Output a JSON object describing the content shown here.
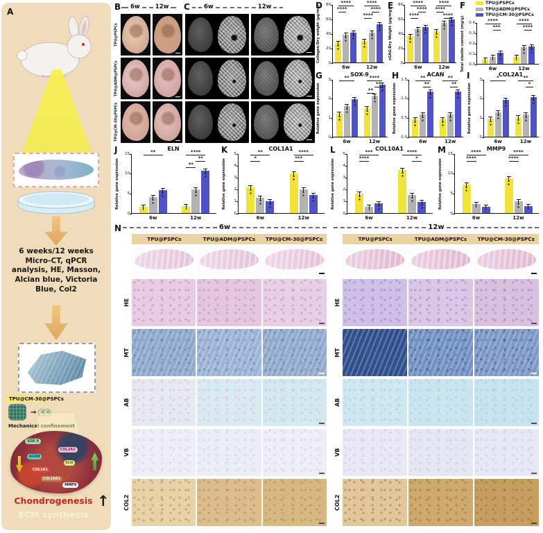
{
  "panelA": {
    "label": "A",
    "protocol_text": "6 weeks/12 weeks Micro-CT, qPCR analysis, HE, Masson, Alcian blue, Victoria Blue, Col2",
    "construct_label": "TPU@CM-30@PSPCs",
    "confinement_label": "Mechanical confinement",
    "cell_genes": [
      {
        "name": "SOX 9",
        "bg": "#a8dcb0",
        "fg": "#1c4d2a"
      },
      {
        "name": "COL2A1",
        "bg": "#f2bede",
        "fg": "#7a2456"
      },
      {
        "name": "ACAN",
        "bg": "#5fc8c0",
        "fg": "#0d4745"
      },
      {
        "name": "ELN",
        "bg": "#e4e98a",
        "fg": "#6b6b14"
      },
      {
        "name": "COL1A1",
        "bg": "#d8453c",
        "fg": "#ffffff"
      },
      {
        "name": "COL10A1",
        "bg": "#c87840",
        "fg": "#ffffff"
      },
      {
        "name": "MMP9",
        "bg": "#f2f2f2",
        "fg": "#222222"
      }
    ],
    "outcomes": [
      {
        "text": "Chondrogenesis",
        "color": "#c5281c"
      },
      {
        "text": "ECM synthesis",
        "color": "#f6efd2"
      }
    ]
  },
  "legend": {
    "items": [
      {
        "label": "TPU@PSPCs",
        "color": "#f2e33b"
      },
      {
        "label": "TPU@ADM@PSPCs",
        "color": "#b3b3b3"
      },
      {
        "label": "TPU@CM-30@PSPCs",
        "color": "#5053c6"
      }
    ]
  },
  "panelB": {
    "label": "B",
    "timepoints": [
      "6w",
      "12w"
    ],
    "row_labels": [
      "TPU@PSPCs",
      "TPU@ADM@PSPCs",
      "TPU@CM-30@PSPCs"
    ]
  },
  "panelC": {
    "label": "C",
    "timepoints": [
      "6w",
      "12w"
    ]
  },
  "chart_data": [
    {
      "panel": "D",
      "type": "bar",
      "title": "",
      "ylabel": "Collagen/Dry weight (µg/mg)",
      "categories": [
        "6w",
        "12w"
      ],
      "ymax": 80,
      "yticks": [
        "0",
        "20",
        "40",
        "60",
        "80"
      ],
      "series": [
        {
          "name": "TPU@PSPCs",
          "values": [
            27,
            30
          ]
        },
        {
          "name": "TPU@ADM@PSPCs",
          "values": [
            38,
            41
          ]
        },
        {
          "name": "TPU@CM-30@PSPCs",
          "values": [
            41,
            52
          ]
        }
      ],
      "sig": [
        [
          {
            "span": [
              0,
              2
            ],
            "stars": "****"
          },
          {
            "span": [
              0,
              1
            ],
            "stars": "****"
          }
        ],
        [
          {
            "span": [
              0,
              2
            ],
            "stars": "****"
          },
          {
            "span": [
              1,
              2
            ],
            "stars": "****"
          },
          {
            "span": [
              0,
              1
            ],
            "stars": "****"
          }
        ]
      ]
    },
    {
      "panel": "E",
      "type": "bar",
      "title": "",
      "ylabel": "sGAG/Dry Weight (µg/mg)",
      "categories": [
        "6w",
        "12w"
      ],
      "ymax": 80,
      "yticks": [
        "0",
        "20",
        "40",
        "60",
        "80"
      ],
      "series": [
        {
          "name": "TPU@PSPCs",
          "values": [
            36,
            43
          ]
        },
        {
          "name": "TPU@ADM@PSPCs",
          "values": [
            46,
            54
          ]
        },
        {
          "name": "TPU@CM-30@PSPCs",
          "values": [
            49,
            59
          ]
        }
      ],
      "sig": [
        [
          {
            "span": [
              0,
              2
            ],
            "stars": "****"
          },
          {
            "span": [
              1,
              2
            ],
            "stars": "****"
          },
          {
            "span": [
              0,
              1
            ],
            "stars": "****"
          }
        ],
        [
          {
            "span": [
              0,
              2
            ],
            "stars": "****"
          },
          {
            "span": [
              0,
              1
            ],
            "stars": "****"
          },
          {
            "span": [
              1,
              2
            ],
            "stars": "****"
          }
        ]
      ]
    },
    {
      "panel": "F",
      "type": "bar",
      "title": "",
      "ylabel": "Total elastin content (mg/g)",
      "categories": [
        "6w",
        "12w"
      ],
      "ymax": 0.4,
      "yticks": [
        "0.0",
        "0.1",
        "0.2",
        "0.3",
        "0.4"
      ],
      "series": [
        {
          "name": "TPU@PSPCs",
          "values": [
            0.04,
            0.07
          ]
        },
        {
          "name": "TPU@ADM@PSPCs",
          "values": [
            0.07,
            0.16
          ]
        },
        {
          "name": "TPU@CM-30@PSPCs",
          "values": [
            0.105,
            0.165
          ]
        }
      ],
      "sig": [
        [
          {
            "span": [
              0,
              2
            ],
            "stars": "****"
          },
          {
            "span": [
              1,
              2
            ],
            "stars": "***"
          }
        ],
        [
          {
            "span": [
              0,
              2
            ],
            "stars": "****"
          },
          {
            "span": [
              1,
              2
            ],
            "stars": "****"
          }
        ]
      ]
    },
    {
      "panel": "G",
      "type": "bar",
      "title": "SOX-9",
      "ylabel": "Relative gene expression",
      "categories": [
        "6w",
        "12w"
      ],
      "ymax": 3,
      "yticks": [
        "0",
        "1",
        "2",
        "3"
      ],
      "series": [
        {
          "name": "TPU@PSPCs",
          "values": [
            1.2,
            1.5
          ]
        },
        {
          "name": "TPU@ADM@PSPCs",
          "values": [
            1.6,
            2.15
          ]
        },
        {
          "name": "TPU@CM-30@PSPCs",
          "values": [
            1.95,
            2.7
          ]
        }
      ],
      "sig": [
        [
          {
            "span": [
              0,
              2
            ],
            "stars": "**"
          }
        ],
        [
          {
            "span": [
              0,
              2
            ],
            "stars": "****"
          },
          {
            "span": [
              1,
              2
            ],
            "stars": "**"
          },
          {
            "span": [
              0,
              1
            ],
            "stars": "**"
          }
        ]
      ]
    },
    {
      "panel": "H",
      "type": "bar",
      "title": "ACAN",
      "ylabel": "Relative gene expression",
      "categories": [
        "6w",
        "12w"
      ],
      "ymax": 1.5,
      "yticks": [
        "0.0",
        "0.5",
        "1.0",
        "1.5"
      ],
      "series": [
        {
          "name": "TPU@PSPCs",
          "values": [
            0.45,
            0.45
          ]
        },
        {
          "name": "TPU@ADM@PSPCs",
          "values": [
            0.57,
            0.58
          ]
        },
        {
          "name": "TPU@CM-30@PSPCs",
          "values": [
            1.17,
            1.17
          ]
        }
      ],
      "sig": [
        [
          {
            "span": [
              0,
              2
            ],
            "stars": "**"
          },
          {
            "span": [
              1,
              2
            ],
            "stars": "**"
          }
        ],
        [
          {
            "span": [
              0,
              2
            ],
            "stars": "**"
          },
          {
            "span": [
              1,
              2
            ],
            "stars": "**"
          }
        ]
      ]
    },
    {
      "panel": "I",
      "type": "bar",
      "title": "COL2A1",
      "ylabel": "Relative gene expression",
      "categories": [
        "6w",
        "12w"
      ],
      "ymax": 3,
      "yticks": [
        "0",
        "1",
        "2",
        "3"
      ],
      "series": [
        {
          "name": "TPU@PSPCs",
          "values": [
            0.95,
            1.0
          ]
        },
        {
          "name": "TPU@ADM@PSPCs",
          "values": [
            1.25,
            1.15
          ]
        },
        {
          "name": "TPU@CM-30@PSPCs",
          "values": [
            1.9,
            2.05
          ]
        }
      ],
      "sig": [
        [
          {
            "span": [
              0,
              2
            ],
            "stars": "*"
          }
        ],
        [
          {
            "span": [
              0,
              2
            ],
            "stars": "**"
          },
          {
            "span": [
              1,
              2
            ],
            "stars": "*"
          }
        ]
      ]
    },
    {
      "panel": "J",
      "type": "bar",
      "title": "ELN",
      "ylabel": "Relative gene expression",
      "categories": [
        "6w",
        "12w"
      ],
      "ymax": 15,
      "yticks": [
        "0",
        "5",
        "10",
        "15"
      ],
      "series": [
        {
          "name": "TPU@PSPCs",
          "values": [
            1.5,
            1.8
          ]
        },
        {
          "name": "TPU@ADM@PSPCs",
          "values": [
            4.0,
            6.0
          ]
        },
        {
          "name": "TPU@CM-30@PSPCs",
          "values": [
            5.8,
            10.6
          ]
        }
      ],
      "sig": [
        [
          {
            "span": [
              0,
              2
            ],
            "stars": "**"
          }
        ],
        [
          {
            "span": [
              0,
              2
            ],
            "stars": "****"
          },
          {
            "span": [
              1,
              2
            ],
            "stars": "**"
          },
          {
            "span": [
              0,
              1
            ],
            "stars": "**"
          }
        ]
      ]
    },
    {
      "panel": "K",
      "type": "bar",
      "title": "COL1A1",
      "ylabel": "Relative gene expression",
      "categories": [
        "6w",
        "12w"
      ],
      "ymax": 5,
      "yticks": [
        "0",
        "1",
        "2",
        "3",
        "4",
        "5"
      ],
      "series": [
        {
          "name": "TPU@PSPCs",
          "values": [
            2.15,
            3.3
          ]
        },
        {
          "name": "TPU@ADM@PSPCs",
          "values": [
            1.3,
            2.0
          ]
        },
        {
          "name": "TPU@CM-30@PSPCs",
          "values": [
            1.0,
            1.5
          ]
        }
      ],
      "sig": [
        [
          {
            "span": [
              0,
              2
            ],
            "stars": "**"
          },
          {
            "span": [
              0,
              1
            ],
            "stars": "*"
          }
        ],
        [
          {
            "span": [
              0,
              2
            ],
            "stars": "****"
          },
          {
            "span": [
              0,
              1
            ],
            "stars": "***"
          }
        ]
      ]
    },
    {
      "panel": "L",
      "type": "bar",
      "title": "COL10A1",
      "ylabel": "Relative gene expression",
      "categories": [
        "6w",
        "12w"
      ],
      "ymax": 5,
      "yticks": [
        "0",
        "1",
        "2",
        "3",
        "4",
        "5"
      ],
      "series": [
        {
          "name": "TPU@PSPCs",
          "values": [
            1.65,
            3.6
          ]
        },
        {
          "name": "TPU@ADM@PSPCs",
          "values": [
            0.55,
            1.5
          ]
        },
        {
          "name": "TPU@CM-30@PSPCs",
          "values": [
            0.8,
            0.95
          ]
        }
      ],
      "sig": [
        [
          {
            "span": [
              0,
              2
            ],
            "stars": "***"
          },
          {
            "span": [
              0,
              1
            ],
            "stars": "****"
          }
        ],
        [
          {
            "span": [
              0,
              2
            ],
            "stars": "****"
          },
          {
            "span": [
              1,
              2
            ],
            "stars": "*"
          }
        ]
      ]
    },
    {
      "panel": "M",
      "type": "bar",
      "title": "MMP9",
      "ylabel": "Relative gene expression",
      "categories": [
        "6w",
        "12w"
      ],
      "ymax": 15,
      "yticks": [
        "0",
        "5",
        "10",
        "15"
      ],
      "series": [
        {
          "name": "TPU@PSPCs",
          "values": [
            7.2,
            8.7
          ]
        },
        {
          "name": "TPU@ADM@PSPCs",
          "values": [
            2.2,
            2.9
          ]
        },
        {
          "name": "TPU@CM-30@PSPCs",
          "values": [
            1.5,
            1.8
          ]
        }
      ],
      "sig": [
        [
          {
            "span": [
              0,
              2
            ],
            "stars": "****"
          },
          {
            "span": [
              0,
              1
            ],
            "stars": "****"
          }
        ],
        [
          {
            "span": [
              0,
              2
            ],
            "stars": "****"
          },
          {
            "span": [
              0,
              1
            ],
            "stars": "****"
          }
        ]
      ]
    }
  ],
  "panelN": {
    "label": "N",
    "timepoints": [
      "6w",
      "12w"
    ],
    "columns": [
      "TPU@PSPCs",
      "TPU@ADM@PSPCs",
      "TPU@CM-30@PSPCs"
    ],
    "overview_colors": {
      "6w": [
        "#f0d8e8",
        "#e4c2da"
      ],
      "12w": [
        "#eccfe2",
        "#dfb8d2"
      ]
    },
    "rows": [
      {
        "label": "HE",
        "colors": {
          "6w": [
            "#e9cbe2",
            "#e4c6df",
            "#e8cfe4"
          ],
          "12w": [
            "#cfc0e8",
            "#dcc6e6",
            "#d8c0e0"
          ]
        },
        "accent": {
          "6w": "#b387ad",
          "12w": "#8f76c0"
        },
        "style": "speckle"
      },
      {
        "label": "MT",
        "colors": {
          "6w": [
            "#8fa9cf",
            "#9db4d6",
            "#93abce"
          ],
          "12w": [
            "#31508e",
            "#7493c4",
            "#7e9ac8"
          ]
        },
        "accent": {
          "6w": "#51779f",
          "12w": "#2c4a7e"
        },
        "style": "streak"
      },
      {
        "label": "AB",
        "colors": {
          "6w": [
            "#e6e9f1",
            "#d8ebf3",
            "#d2e9f2"
          ],
          "12w": [
            "#cfe7f1",
            "#cbe5f0",
            "#c7e3ef"
          ]
        },
        "accent": {
          "6w": "#dcb4ca",
          "12w": "#9cc6dc"
        },
        "style": "speckle"
      },
      {
        "label": "VB",
        "colors": {
          "6w": [
            "#efeef8",
            "#ededf7",
            "#eeedf8"
          ],
          "12w": [
            "#e9e8f4",
            "#e7e6f3",
            "#e8e7f4"
          ]
        },
        "accent": {
          "6w": "#cbc9e2",
          "12w": "#c4c2de"
        },
        "style": "speckle"
      },
      {
        "label": "COL2",
        "colors": {
          "6w": [
            "#e8d2a8",
            "#dbbd8d",
            "#d8b882"
          ],
          "12w": [
            "#e2c79c",
            "#cfa96e",
            "#c89e60"
          ]
        },
        "accent": {
          "6w": "#a8824c",
          "12w": "#8f6a38"
        },
        "style": "speckle"
      }
    ]
  }
}
